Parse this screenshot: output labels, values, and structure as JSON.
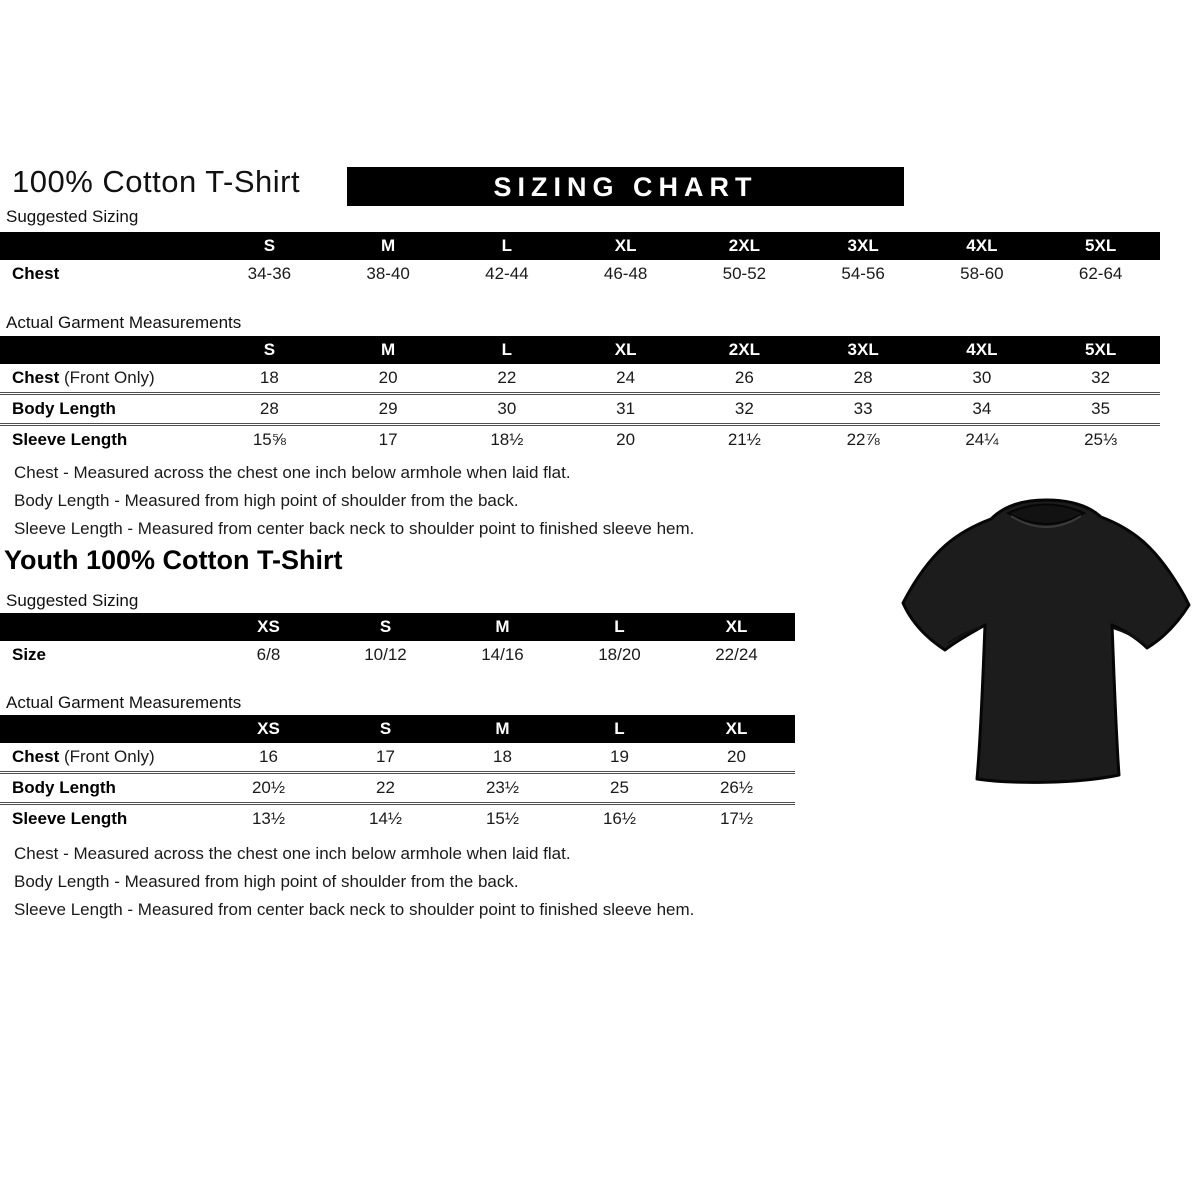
{
  "page": {
    "title": "100% Cotton T-Shirt",
    "banner": "SIZING CHART",
    "youth_title": "Youth 100% Cotton T-Shirt",
    "suggested_label": "Suggested Sizing",
    "actual_label": "Actual Garment Measurements"
  },
  "adult": {
    "suggested": {
      "columns": [
        "S",
        "M",
        "L",
        "XL",
        "2XL",
        "3XL",
        "4XL",
        "5XL"
      ],
      "rows": [
        {
          "label": "Chest",
          "suffix": "",
          "values": [
            "34-36",
            "38-40",
            "42-44",
            "46-48",
            "50-52",
            "54-56",
            "58-60",
            "62-64"
          ]
        }
      ]
    },
    "actual": {
      "columns": [
        "S",
        "M",
        "L",
        "XL",
        "2XL",
        "3XL",
        "4XL",
        "5XL"
      ],
      "rows": [
        {
          "label": "Chest",
          "suffix": " (Front Only)",
          "values": [
            "18",
            "20",
            "22",
            "24",
            "26",
            "28",
            "30",
            "32"
          ]
        },
        {
          "label": "Body Length",
          "suffix": "",
          "values": [
            "28",
            "29",
            "30",
            "31",
            "32",
            "33",
            "34",
            "35"
          ]
        },
        {
          "label": "Sleeve Length",
          "suffix": "",
          "values": [
            "15⅝",
            "17",
            "18½",
            "20",
            "21½",
            "22⅞",
            "24¼",
            "25⅓"
          ]
        }
      ]
    },
    "notes": [
      "Chest - Measured across the chest one inch below armhole when laid flat.",
      "Body Length - Measured from high point of shoulder from the back.",
      "Sleeve Length - Measured from center back neck to shoulder point to finished sleeve hem."
    ]
  },
  "youth": {
    "suggested": {
      "columns": [
        "XS",
        "S",
        "M",
        "L",
        "XL"
      ],
      "rows": [
        {
          "label": "Size",
          "suffix": "",
          "values": [
            "6/8",
            "10/12",
            "14/16",
            "18/20",
            "22/24"
          ]
        }
      ]
    },
    "actual": {
      "columns": [
        "XS",
        "S",
        "M",
        "L",
        "XL"
      ],
      "rows": [
        {
          "label": "Chest",
          "suffix": " (Front Only)",
          "values": [
            "16",
            "17",
            "18",
            "19",
            "20"
          ]
        },
        {
          "label": "Body Length",
          "suffix": "",
          "values": [
            "20½",
            "22",
            "23½",
            "25",
            "26½"
          ]
        },
        {
          "label": "Sleeve Length",
          "suffix": "",
          "values": [
            "13½",
            "14½",
            "15½",
            "16½",
            "17½"
          ]
        }
      ]
    },
    "notes": [
      "Chest - Measured across the chest one inch below armhole when laid flat.",
      "Body Length - Measured from high point of shoulder from the back.",
      "Sleeve Length - Measured from center back neck to shoulder point to finished sleeve hem."
    ]
  },
  "tshirt": {
    "name": "black t-shirt product photo",
    "color": "#1c1c1c",
    "outline": "#060606",
    "collar": "#121212"
  }
}
